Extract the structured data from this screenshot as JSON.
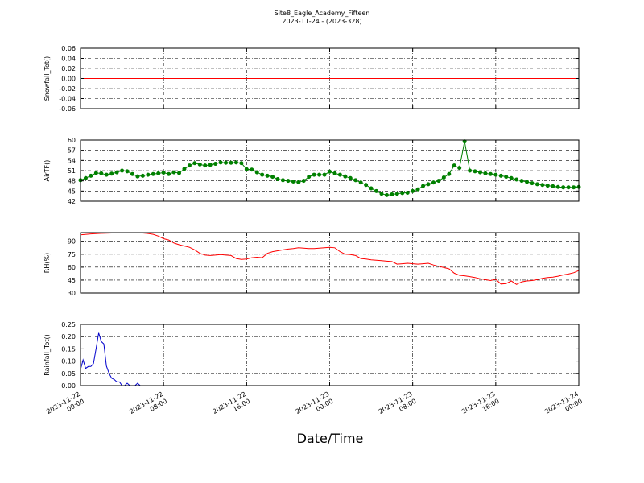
{
  "chart_data": {
    "title": "Site8_Eagle_Academy_Fifteen",
    "subtitle": "2023-11-24 - (2023-328)",
    "xlabel": "Date/Time",
    "x_ticks": [
      {
        "value": 0,
        "line1": "2023-11-22",
        "line2": "00:00"
      },
      {
        "value": 8,
        "line1": "2023-11-22",
        "line2": "08:00"
      },
      {
        "value": 16,
        "line1": "2023-11-22",
        "line2": "16:00"
      },
      {
        "value": 24,
        "line1": "2023-11-23",
        "line2": "00:00"
      },
      {
        "value": 32,
        "line1": "2023-11-23",
        "line2": "08:00"
      },
      {
        "value": 40,
        "line1": "2023-11-23",
        "line2": "16:00"
      },
      {
        "value": 48,
        "line1": "2023-11-24",
        "line2": "00:00"
      }
    ],
    "grid": true,
    "panels": [
      {
        "type": "line",
        "ylabel": "Snowfall_Tot()",
        "ylim": [
          -0.06,
          0.06
        ],
        "yticks": [
          "-0.06",
          "-0.04",
          "-0.02",
          "0.00",
          "0.02",
          "0.04",
          "0.06"
        ],
        "color": "#ff0000",
        "markers": false,
        "x": [
          0,
          48
        ],
        "y": [
          0,
          0
        ]
      },
      {
        "type": "line",
        "ylabel": "AirTF()",
        "ylim": [
          42,
          60
        ],
        "yticks": [
          "42",
          "45",
          "48",
          "51",
          "54",
          "57",
          "60"
        ],
        "color": "#008000",
        "markers": true,
        "x": [
          0,
          0.5,
          1,
          1.5,
          2,
          2.5,
          3,
          3.5,
          4,
          4.5,
          5,
          5.5,
          6,
          6.5,
          7,
          7.5,
          8,
          8.5,
          9,
          9.5,
          10,
          10.5,
          11,
          11.5,
          12,
          12.5,
          13,
          13.5,
          14,
          14.5,
          15,
          15.5,
          16,
          16.5,
          17,
          17.5,
          18,
          18.5,
          19,
          19.5,
          20,
          20.5,
          21,
          21.5,
          22,
          22.5,
          23,
          23.5,
          24,
          24.5,
          25,
          25.5,
          26,
          26.5,
          27,
          27.5,
          28,
          28.5,
          29,
          29.5,
          30,
          30.5,
          31,
          31.5,
          32,
          32.5,
          33,
          33.5,
          34,
          34.5,
          35,
          35.5,
          36,
          36.5,
          37,
          37.5,
          38,
          38.5,
          39,
          39.5,
          40,
          40.5,
          41,
          41.5,
          42,
          42.5,
          43,
          43.5,
          44,
          44.5,
          45,
          45.5,
          46,
          46.5,
          47,
          47.5,
          48
        ],
        "y": [
          48.2,
          48.8,
          49.5,
          50.3,
          50.2,
          49.8,
          50.1,
          50.5,
          51.0,
          50.8,
          50.0,
          49.3,
          49.5,
          49.8,
          50.0,
          50.2,
          50.4,
          50.0,
          50.5,
          50.3,
          51.5,
          52.5,
          53.2,
          52.8,
          52.5,
          52.7,
          53.0,
          53.4,
          53.3,
          53.3,
          53.4,
          53.2,
          51.4,
          51.3,
          50.5,
          49.8,
          49.5,
          49.2,
          48.5,
          48.2,
          48.0,
          47.8,
          47.6,
          48.0,
          49.2,
          49.8,
          49.8,
          49.8,
          50.7,
          50.2,
          49.8,
          49.3,
          48.8,
          48.2,
          47.5,
          46.8,
          45.8,
          45.0,
          44.2,
          43.8,
          44.0,
          44.2,
          44.4,
          44.5,
          45.0,
          45.5,
          46.5,
          47.0,
          47.5,
          48.0,
          49.0,
          50.0,
          52.5,
          51.8,
          59.6,
          51.0,
          50.8,
          50.5,
          50.2,
          50.0,
          49.8,
          49.5,
          49.2,
          48.8,
          48.4,
          48.0,
          47.7,
          47.3,
          47.0,
          46.8,
          46.6,
          46.4,
          46.2,
          46.1,
          46.1,
          46.1,
          46.2
        ]
      },
      {
        "type": "line",
        "ylabel": "RH(%)",
        "ylim": [
          30,
          100
        ],
        "yticks": [
          "30",
          "45",
          "60",
          "75",
          "90"
        ],
        "color": "#ff0000",
        "markers": false,
        "x": [
          0,
          1,
          2,
          3,
          4,
          5,
          6,
          6.5,
          7,
          7.5,
          8,
          8.5,
          9,
          9.5,
          10,
          10.5,
          11,
          11.5,
          12,
          12.5,
          13,
          13.5,
          14,
          14.5,
          15,
          15.5,
          16,
          16.5,
          17,
          17.5,
          18,
          18.5,
          19,
          19.5,
          20,
          20.5,
          21,
          21.5,
          22,
          22.5,
          23,
          23.5,
          24,
          24.5,
          25,
          25.5,
          26,
          26.5,
          27,
          27.5,
          28,
          28.5,
          29,
          29.5,
          30,
          30.5,
          31,
          31.5,
          32,
          32.5,
          33,
          33.5,
          34,
          34.5,
          35,
          35.5,
          36,
          36.5,
          37,
          37.5,
          38,
          38.5,
          39,
          39.5,
          40,
          40.5,
          41,
          41.5,
          42,
          42.5,
          43,
          43.5,
          44,
          44.5,
          45,
          45.5,
          46,
          46.5,
          47,
          47.5,
          48
        ],
        "y": [
          97.5,
          98.5,
          99.2,
          99.5,
          99.6,
          99.6,
          99.5,
          99.0,
          98.0,
          96.0,
          93.0,
          91.5,
          88.0,
          86.0,
          84.5,
          83.0,
          80.0,
          76.0,
          74.0,
          73.5,
          74.0,
          74.5,
          74.0,
          73.5,
          70.0,
          69.0,
          69.5,
          71.0,
          71.5,
          71.0,
          76.0,
          78.0,
          79.0,
          80.0,
          81.0,
          81.5,
          82.5,
          82.0,
          81.5,
          81.5,
          82.0,
          82.5,
          83.0,
          82.5,
          78.0,
          75.0,
          74.5,
          73.5,
          70.0,
          69.5,
          68.5,
          68.0,
          67.5,
          67.0,
          66.5,
          63.5,
          64.0,
          64.5,
          64.0,
          63.5,
          64.0,
          64.5,
          62.5,
          61.0,
          59.5,
          58.0,
          53.0,
          50.5,
          50.0,
          49.0,
          48.0,
          46.5,
          45.5,
          44.5,
          46.0,
          40.5,
          41.0,
          44.0,
          40.0,
          43.0,
          44.0,
          44.5,
          45.5,
          47.0,
          48.0,
          48.5,
          49.5,
          51.0,
          52.0,
          53.5,
          56.0
        ]
      },
      {
        "type": "line",
        "ylabel": "Rainfall_Tot()",
        "ylim": [
          0,
          0.25
        ],
        "yticks": [
          "0.00",
          "0.05",
          "0.10",
          "0.15",
          "0.20",
          "0.25"
        ],
        "color": "#0000cc",
        "markers": false,
        "x": [
          0,
          0.25,
          0.5,
          0.75,
          1.0,
          1.25,
          1.5,
          1.75,
          2.0,
          2.25,
          2.5,
          2.75,
          3.0,
          3.25,
          3.5,
          3.75,
          4.0,
          4.25,
          4.5,
          4.75,
          5.0,
          5.25,
          5.5,
          5.75,
          6.0,
          6.25,
          6.5,
          6.75,
          7,
          10,
          20,
          30,
          40,
          48
        ],
        "y": [
          0.065,
          0.105,
          0.07,
          0.078,
          0.078,
          0.09,
          0.15,
          0.215,
          0.18,
          0.17,
          0.08,
          0.05,
          0.03,
          0.025,
          0.015,
          0.015,
          0.0,
          0.0,
          0.01,
          0.0,
          0.0,
          0.0,
          0.01,
          0.0,
          0.0,
          0.0,
          0.0,
          0.0,
          0.0,
          0.0,
          0.0,
          0.0,
          0.0,
          0.0
        ]
      }
    ]
  }
}
